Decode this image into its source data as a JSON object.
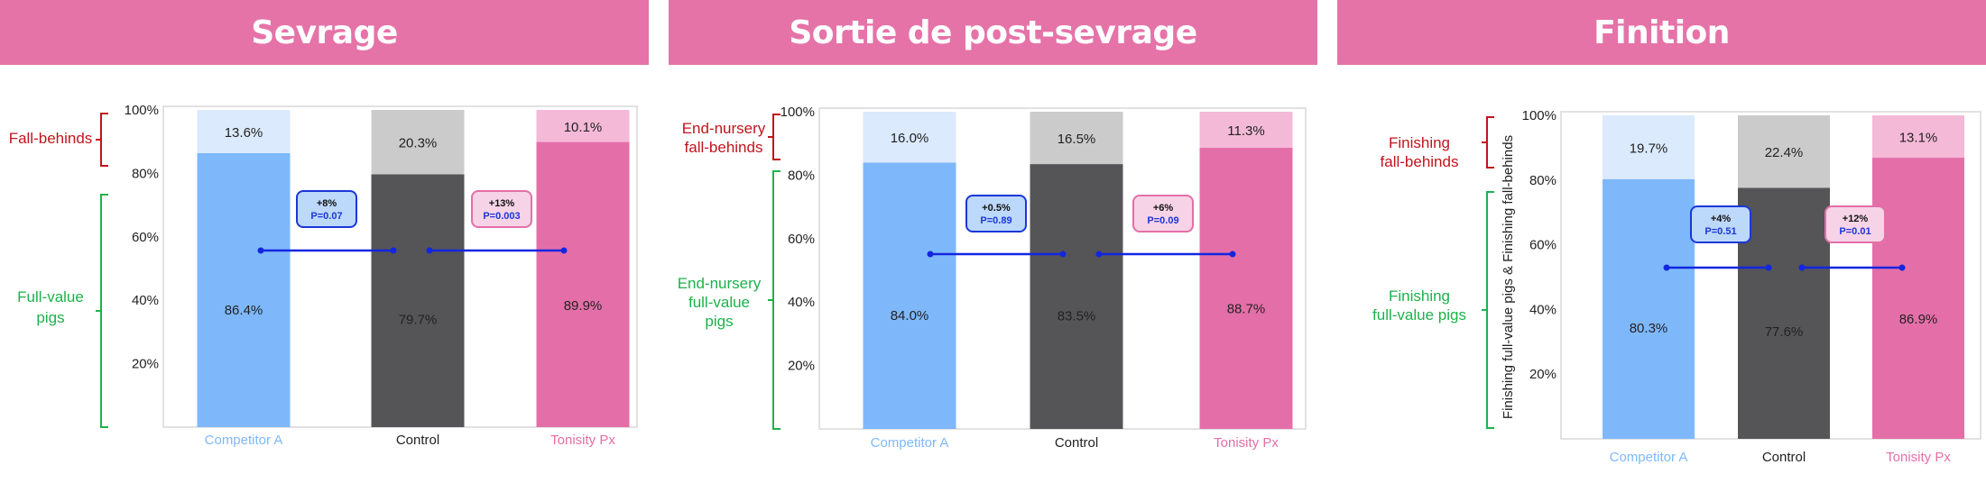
{
  "colors": {
    "header": "#e573a8",
    "competitor_main": "#7eb8fb",
    "competitor_light": "#dbeafd",
    "control_main": "#555457",
    "control_light": "#cbcbcb",
    "tonisity_main": "#e46fa8",
    "tonisity_light": "#f4b9d7",
    "fallbehind_text": "#c0151c",
    "fullvalue_text": "#1db24b",
    "connector": "#1326e0"
  },
  "panels": [
    {
      "header": "Sevrage",
      "fallbehind_label": [
        "Fall-behinds"
      ],
      "fullvalue_label": [
        "Full-value",
        "pigs"
      ],
      "y_axis_title": "",
      "comparisons": [
        {
          "delta": "+8%",
          "p": "P=0.07"
        },
        {
          "delta": "+13%",
          "p": "P=0.003"
        }
      ]
    },
    {
      "header": "Sortie de post-sevrage",
      "fallbehind_label": [
        "End-nursery",
        "fall-behinds"
      ],
      "fullvalue_label": [
        "End-nursery",
        "full-value",
        "pigs"
      ],
      "y_axis_title": "",
      "comparisons": [
        {
          "delta": "+0.5%",
          "p": "P=0.89"
        },
        {
          "delta": "+6%",
          "p": "P=0.09"
        }
      ]
    },
    {
      "header": "Finition",
      "fallbehind_label": [
        "Finishing",
        "fall-behinds"
      ],
      "fullvalue_label": [
        "Finishing",
        "full-value pigs"
      ],
      "y_axis_title": "Finishing full-value pigs & Finishing fall-behinds",
      "comparisons": [
        {
          "delta": "+4%",
          "p": "P=0.51"
        },
        {
          "delta": "+12%",
          "p": "P=0.01"
        }
      ]
    }
  ],
  "chart_data": [
    {
      "type": "bar",
      "stacked": true,
      "title": "Sevrage",
      "categories": [
        "Competitor A",
        "Control",
        "Tonisity Px"
      ],
      "series": [
        {
          "name": "Full-value pigs",
          "values": [
            86.4,
            79.7,
            89.9
          ],
          "labels": [
            "86.4%",
            "79.7%",
            "89.9%"
          ]
        },
        {
          "name": "Fall-behinds",
          "values": [
            13.6,
            20.3,
            10.1
          ],
          "labels": [
            "13.6%",
            "20.3%",
            "10.1%"
          ]
        }
      ],
      "ylim": [
        0,
        100
      ],
      "yticks": [
        "20%",
        "40%",
        "60%",
        "80%",
        "100%"
      ]
    },
    {
      "type": "bar",
      "stacked": true,
      "title": "Sortie de post-sevrage",
      "categories": [
        "Competitor A",
        "Control",
        "Tonisity Px"
      ],
      "series": [
        {
          "name": "End-nursery full-value pigs",
          "values": [
            84.0,
            83.5,
            88.7
          ],
          "labels": [
            "84.0%",
            "83.5%",
            "88.7%"
          ]
        },
        {
          "name": "End-nursery fall-behinds",
          "values": [
            16.0,
            16.5,
            11.3
          ],
          "labels": [
            "16.0%",
            "16.5%",
            "11.3%"
          ]
        }
      ],
      "ylim": [
        0,
        100
      ],
      "yticks": [
        "20%",
        "40%",
        "60%",
        "80%",
        "100%"
      ]
    },
    {
      "type": "bar",
      "stacked": true,
      "title": "Finition",
      "categories": [
        "Competitor A",
        "Control",
        "Tonisity Px"
      ],
      "series": [
        {
          "name": "Finishing full-value pigs",
          "values": [
            80.3,
            77.6,
            86.9
          ],
          "labels": [
            "80.3%",
            "77.6%",
            "86.9%"
          ]
        },
        {
          "name": "Finishing fall-behinds",
          "values": [
            19.7,
            22.4,
            13.1
          ],
          "labels": [
            "19.7%",
            "22.4%",
            "13.1%"
          ]
        }
      ],
      "ylim": [
        0,
        100
      ],
      "yticks": [
        "20%",
        "40%",
        "60%",
        "80%",
        "100%"
      ],
      "ylabel": "Finishing full-value pigs & Finishing fall-behinds"
    }
  ]
}
